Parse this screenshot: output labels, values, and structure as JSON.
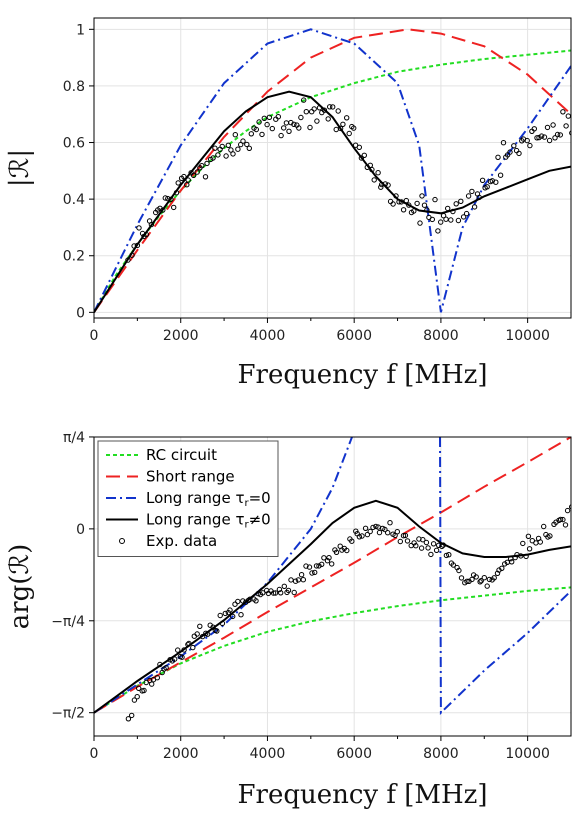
{
  "chart_data": [
    {
      "type": "line",
      "xlabel": "Frequency  f    [MHz]",
      "ylabel": "|ℛ|",
      "xlim": [
        0,
        11000
      ],
      "ylim": [
        -0.02,
        1.04
      ],
      "x_ticks": [
        0,
        2000,
        4000,
        6000,
        8000,
        10000
      ],
      "x_tick_labels": [
        "0",
        "2000",
        "4000",
        "6000",
        "8000",
        "10000"
      ],
      "y_ticks": [
        0,
        0.2,
        0.4,
        0.6,
        0.8,
        1
      ],
      "y_tick_labels": [
        "0",
        "0.2",
        "0.4",
        "0.6",
        "0.8",
        "1"
      ],
      "grid": true,
      "series": [
        {
          "key": "rc",
          "color": "#22dd22",
          "dash": "4,3",
          "points": [
            [
              0,
              0
            ],
            [
              500,
              0.13
            ],
            [
              1000,
              0.24
            ],
            [
              1500,
              0.34
            ],
            [
              2000,
              0.43
            ],
            [
              2500,
              0.51
            ],
            [
              3000,
              0.58
            ],
            [
              3500,
              0.64
            ],
            [
              4000,
              0.69
            ],
            [
              5000,
              0.76
            ],
            [
              6000,
              0.81
            ],
            [
              7000,
              0.85
            ],
            [
              8000,
              0.875
            ],
            [
              9000,
              0.895
            ],
            [
              10000,
              0.91
            ],
            [
              11000,
              0.925
            ]
          ]
        },
        {
          "key": "short",
          "color": "#ee2222",
          "dash": "14,7",
          "points": [
            [
              0,
              0
            ],
            [
              1000,
              0.22
            ],
            [
              2000,
              0.43
            ],
            [
              3000,
              0.62
            ],
            [
              4000,
              0.78
            ],
            [
              5000,
              0.9
            ],
            [
              6000,
              0.97
            ],
            [
              7250,
              1.0
            ],
            [
              8000,
              0.985
            ],
            [
              9000,
              0.94
            ],
            [
              10000,
              0.84
            ],
            [
              11000,
              0.7
            ]
          ]
        },
        {
          "key": "long0",
          "color": "#1133cc",
          "dash": "10,4,2,4",
          "points": [
            [
              0,
              0
            ],
            [
              1000,
              0.31
            ],
            [
              2000,
              0.59
            ],
            [
              3000,
              0.81
            ],
            [
              4000,
              0.95
            ],
            [
              5000,
              1.0
            ],
            [
              6000,
              0.95
            ],
            [
              7000,
              0.81
            ],
            [
              7500,
              0.59
            ],
            [
              8000,
              0.0
            ],
            [
              8500,
              0.3
            ],
            [
              9000,
              0.45
            ],
            [
              10000,
              0.65
            ],
            [
              11000,
              0.87
            ]
          ]
        },
        {
          "key": "long",
          "color": "#000000",
          "dash": "",
          "points": [
            [
              0,
              0
            ],
            [
              1000,
              0.24
            ],
            [
              2000,
              0.45
            ],
            [
              3000,
              0.64
            ],
            [
              3500,
              0.71
            ],
            [
              4000,
              0.76
            ],
            [
              4500,
              0.78
            ],
            [
              5000,
              0.76
            ],
            [
              5500,
              0.69
            ],
            [
              6000,
              0.58
            ],
            [
              6500,
              0.48
            ],
            [
              7000,
              0.4
            ],
            [
              7500,
              0.36
            ],
            [
              8000,
              0.35
            ],
            [
              8500,
              0.37
            ],
            [
              9000,
              0.41
            ],
            [
              9500,
              0.44
            ],
            [
              10000,
              0.47
            ],
            [
              10500,
              0.5
            ],
            [
              11000,
              0.515
            ]
          ]
        }
      ],
      "scatter": {
        "anchors": [
          [
            800,
            0.2
          ],
          [
            1000,
            0.25
          ],
          [
            1500,
            0.35
          ],
          [
            2000,
            0.44
          ],
          [
            2500,
            0.51
          ],
          [
            3000,
            0.58
          ],
          [
            3500,
            0.62
          ],
          [
            4000,
            0.65
          ],
          [
            4500,
            0.67
          ],
          [
            5000,
            0.71
          ],
          [
            5500,
            0.7
          ],
          [
            6000,
            0.62
          ],
          [
            6500,
            0.48
          ],
          [
            7000,
            0.4
          ],
          [
            7500,
            0.36
          ],
          [
            8000,
            0.34
          ],
          [
            8500,
            0.36
          ],
          [
            9000,
            0.42
          ],
          [
            9500,
            0.55
          ],
          [
            10000,
            0.61
          ],
          [
            10500,
            0.63
          ],
          [
            11000,
            0.66
          ]
        ],
        "count": 170,
        "noise": 0.05
      }
    },
    {
      "type": "line",
      "xlabel": "Frequency  f    [MHz]",
      "ylabel": "arg(ℛ)",
      "xlim": [
        0,
        11000
      ],
      "ylim": [
        -1.77,
        0.785
      ],
      "x_ticks": [
        0,
        2000,
        4000,
        6000,
        8000,
        10000
      ],
      "x_tick_labels": [
        "0",
        "2000",
        "4000",
        "6000",
        "8000",
        "10000"
      ],
      "y_ticks": [
        0.7854,
        0,
        -0.7854,
        -1.5708
      ],
      "y_tick_labels": [
        "π/4",
        "0",
        "−π/4",
        "−π/2"
      ],
      "grid": true,
      "legend": {
        "position": "top-left",
        "entries": [
          {
            "key": "rc",
            "label": "RC circuit"
          },
          {
            "key": "short",
            "label": "Short range"
          },
          {
            "key": "long0",
            "label": "Long range τ",
            "sub": "r",
            "suffix": "=0"
          },
          {
            "key": "long",
            "label": "Long range τ",
            "sub": "r",
            "suffix": "≠0"
          },
          {
            "key": "exp",
            "label": "Exp. data"
          }
        ]
      },
      "series": [
        {
          "key": "rc",
          "color": "#22dd22",
          "dash": "4,3",
          "points": [
            [
              0,
              -1.5708
            ],
            [
              1000,
              -1.34
            ],
            [
              2000,
              -1.15
            ],
            [
              3000,
              -1.0
            ],
            [
              4000,
              -0.88
            ],
            [
              5000,
              -0.79
            ],
            [
              6000,
              -0.72
            ],
            [
              7000,
              -0.66
            ],
            [
              8000,
              -0.61
            ],
            [
              9000,
              -0.57
            ],
            [
              10000,
              -0.53
            ],
            [
              11000,
              -0.5
            ]
          ]
        },
        {
          "key": "short",
          "color": "#ee2222",
          "dash": "14,7",
          "points": [
            [
              0,
              -1.5708
            ],
            [
              1000,
              -1.35
            ],
            [
              2000,
              -1.14
            ],
            [
              3000,
              -0.93
            ],
            [
              4000,
              -0.71
            ],
            [
              5000,
              -0.5
            ],
            [
              6000,
              -0.29
            ],
            [
              7000,
              -0.07
            ],
            [
              8000,
              0.14
            ],
            [
              9000,
              0.36
            ],
            [
              10000,
              0.57
            ],
            [
              11000,
              0.7854
            ]
          ]
        },
        {
          "key": "long0",
          "color": "#1133cc",
          "dash": "10,4,2,4",
          "points": [
            [
              0,
              -1.5708
            ],
            [
              1000,
              -1.33
            ],
            [
              2000,
              -1.09
            ],
            [
              3000,
              -0.82
            ],
            [
              4000,
              -0.46
            ],
            [
              5000,
              0.0
            ],
            [
              5500,
              0.35
            ],
            [
              5950,
              0.7854
            ],
            [
              null,
              null
            ],
            [
              7980,
              0.7854
            ],
            [
              8000,
              -1.5708
            ],
            [
              9000,
              -1.21
            ],
            [
              10000,
              -0.89
            ],
            [
              11000,
              -0.53
            ]
          ]
        },
        {
          "key": "long",
          "color": "#000000",
          "dash": "",
          "points": [
            [
              0,
              -1.5708
            ],
            [
              1000,
              -1.3
            ],
            [
              2000,
              -1.05
            ],
            [
              3000,
              -0.78
            ],
            [
              4000,
              -0.47
            ],
            [
              5000,
              -0.13
            ],
            [
              5500,
              0.05
            ],
            [
              6000,
              0.18
            ],
            [
              6500,
              0.24
            ],
            [
              7000,
              0.18
            ],
            [
              7500,
              0.02
            ],
            [
              8000,
              -0.12
            ],
            [
              8500,
              -0.21
            ],
            [
              9000,
              -0.24
            ],
            [
              9500,
              -0.24
            ],
            [
              10000,
              -0.22
            ],
            [
              10500,
              -0.18
            ],
            [
              11000,
              -0.15
            ]
          ]
        }
      ],
      "scatter": {
        "anchors": [
          [
            800,
            -1.62
          ],
          [
            1000,
            -1.42
          ],
          [
            1500,
            -1.23
          ],
          [
            2000,
            -1.05
          ],
          [
            2500,
            -0.9
          ],
          [
            3000,
            -0.75
          ],
          [
            3500,
            -0.63
          ],
          [
            4000,
            -0.55
          ],
          [
            4500,
            -0.5
          ],
          [
            5000,
            -0.38
          ],
          [
            5500,
            -0.2
          ],
          [
            6000,
            -0.06
          ],
          [
            6500,
            0.0
          ],
          [
            7000,
            -0.05
          ],
          [
            7500,
            -0.12
          ],
          [
            8000,
            -0.18
          ],
          [
            8500,
            -0.4
          ],
          [
            9000,
            -0.45
          ],
          [
            9500,
            -0.3
          ],
          [
            10000,
            -0.15
          ],
          [
            10500,
            -0.02
          ],
          [
            11000,
            0.12
          ]
        ],
        "count": 175,
        "noise": 0.07
      }
    }
  ]
}
